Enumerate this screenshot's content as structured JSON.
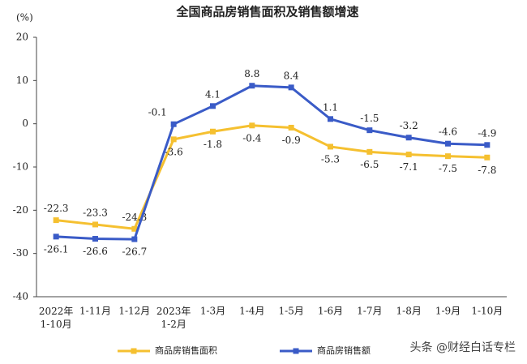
{
  "chart_data": {
    "type": "line",
    "title": "全国商品房销售面积及销售额增速",
    "y_unit": "(%)",
    "categories": [
      "2022年\n1-10月",
      "1-11月",
      "1-12月",
      "2023年\n1-2月",
      "1-3月",
      "1-4月",
      "1-5月",
      "1-6月",
      "1-7月",
      "1-8月",
      "1-9月",
      "1-10月"
    ],
    "series": [
      {
        "name": "商品房销售面积",
        "color": "#f5c030",
        "values": [
          -22.3,
          -23.3,
          -24.3,
          -3.6,
          -1.8,
          -0.4,
          -0.9,
          -5.3,
          -6.5,
          -7.1,
          -7.5,
          -7.8
        ]
      },
      {
        "name": "商品房销售额",
        "color": "#3a5bc7",
        "values": [
          -26.1,
          -26.6,
          -26.7,
          -0.1,
          4.1,
          8.8,
          8.4,
          1.1,
          -1.5,
          -3.2,
          -4.6,
          -4.9
        ]
      }
    ],
    "ylim": [
      -40,
      20
    ],
    "yticks": [
      -40,
      -30,
      -20,
      -10,
      0,
      10,
      20
    ],
    "grid": false,
    "watermark": "头条 @财经白话专栏"
  }
}
